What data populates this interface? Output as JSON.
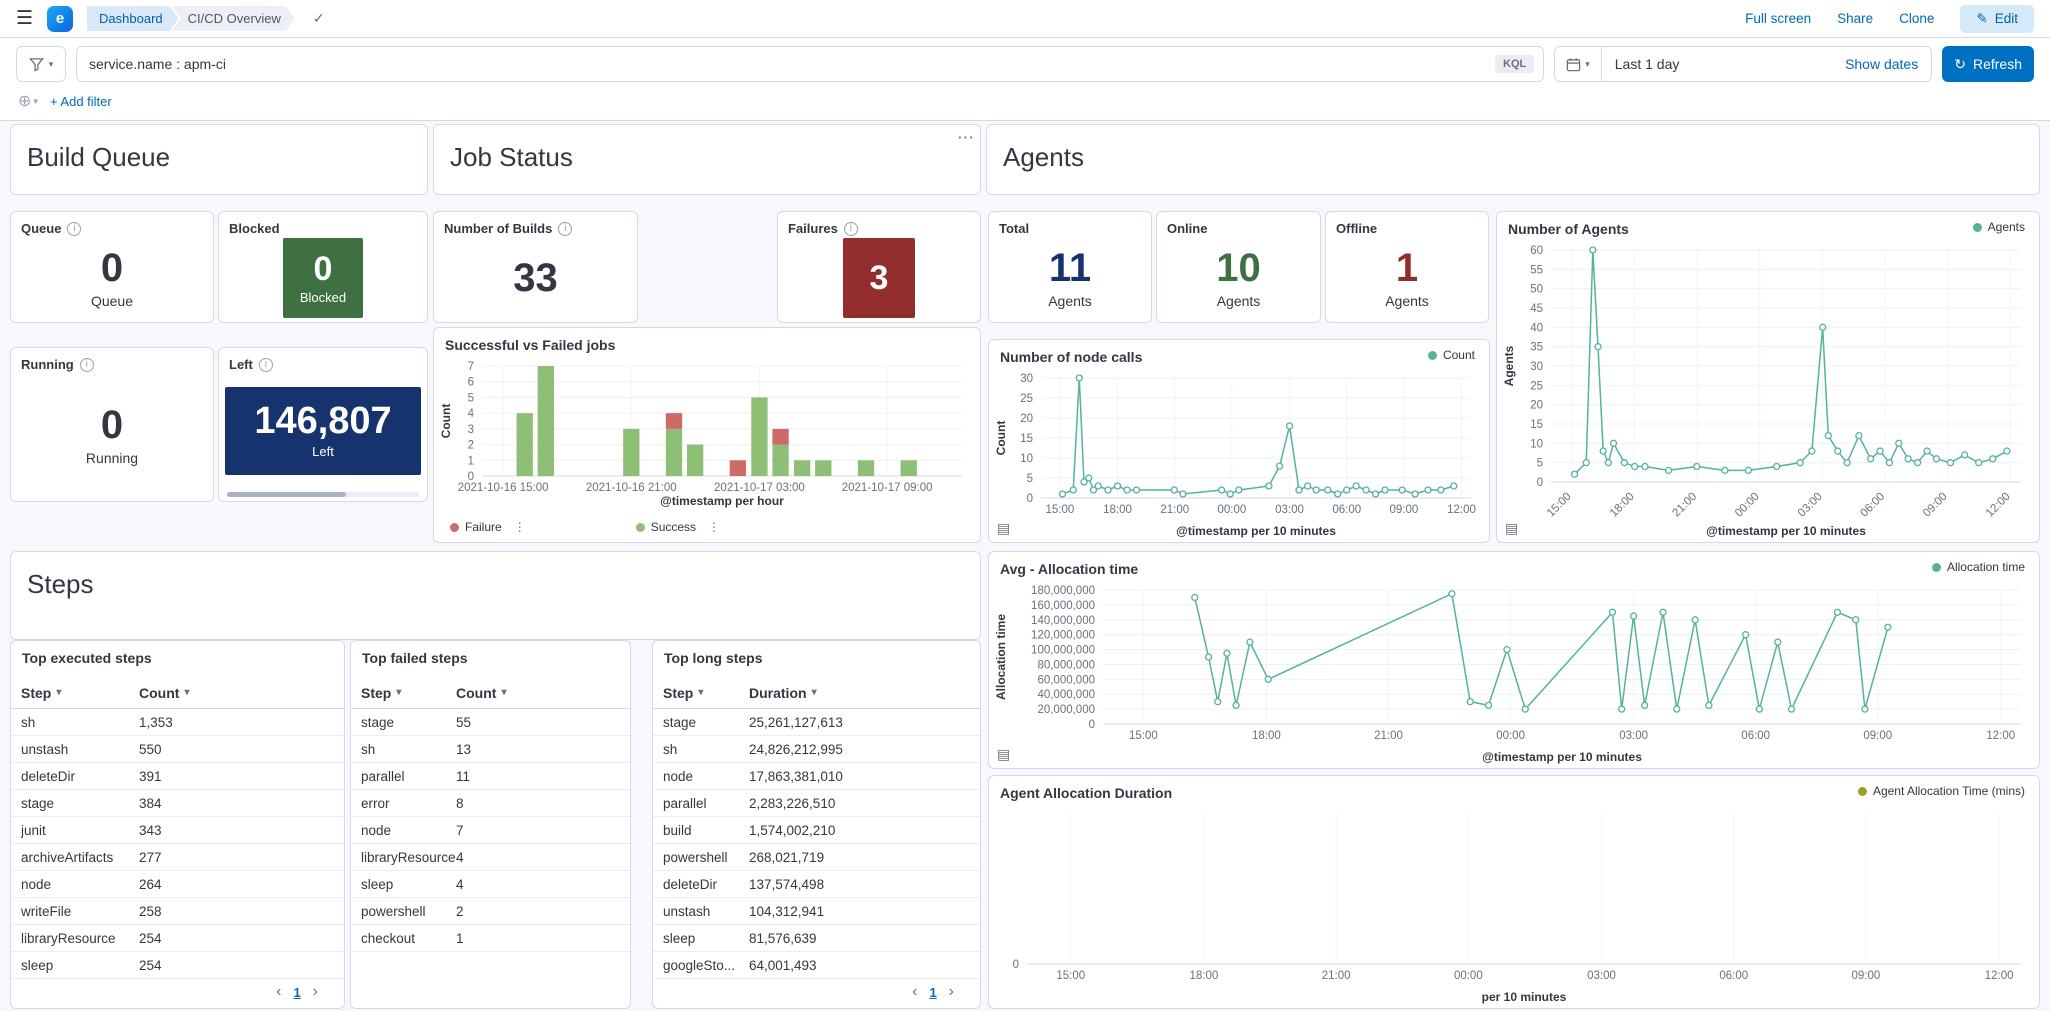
{
  "icons": {
    "menu": "☰",
    "check": "✓",
    "info": "i",
    "edit_pencil": "✎",
    "refresh_arrow": "↻",
    "chevron_down": "▾",
    "prev": "‹",
    "next": "›",
    "ellipsis": "⋯",
    "kebab": "⋮",
    "inspector": "▤",
    "plus_circle": "⊕",
    "space_letter": "e"
  },
  "header": {
    "breadcrumb1": "Dashboard",
    "breadcrumb2": "CI/CD Overview",
    "full_screen": "Full screen",
    "share": "Share",
    "clone": "Clone",
    "edit": "Edit"
  },
  "query": {
    "value": "service.name : apm-ci",
    "badge": "KQL",
    "time_range": "Last 1 day",
    "show_dates": "Show dates",
    "refresh": "Refresh",
    "add_filter": "+ Add filter"
  },
  "panels": {
    "build_queue": {
      "title": "Build Queue",
      "queue": {
        "label": "Queue",
        "value": "0",
        "sub": "Queue"
      },
      "blocked": {
        "label": "Blocked",
        "value": "0",
        "sub": "Blocked"
      },
      "running": {
        "label": "Running",
        "value": "0",
        "sub": "Running"
      },
      "left": {
        "label": "Left",
        "value": "146,807",
        "sub": "Left"
      }
    },
    "job_status": {
      "title": "Job Status",
      "builds": {
        "label": "Number of Builds",
        "value": "33"
      },
      "failures": {
        "label": "Failures",
        "value": "3"
      }
    },
    "agents": {
      "title": "Agents",
      "total": {
        "label": "Total",
        "value": "11",
        "sub": "Agents"
      },
      "online": {
        "label": "Online",
        "value": "10",
        "sub": "Agents"
      },
      "offline": {
        "label": "Offline",
        "value": "1",
        "sub": "Agents"
      }
    },
    "steps": {
      "title": "Steps"
    }
  },
  "tables": [
    {
      "title": "Top executed steps",
      "columns": [
        "Step",
        "Count"
      ],
      "rows": [
        [
          "sh",
          "1,353"
        ],
        [
          "unstash",
          "550"
        ],
        [
          "deleteDir",
          "391"
        ],
        [
          "stage",
          "384"
        ],
        [
          "junit",
          "343"
        ],
        [
          "archiveArtifacts",
          "277"
        ],
        [
          "node",
          "264"
        ],
        [
          "writeFile",
          "258"
        ],
        [
          "libraryResource",
          "254"
        ],
        [
          "sleep",
          "254"
        ]
      ],
      "page": "1"
    },
    {
      "title": "Top failed steps",
      "columns": [
        "Step",
        "Count"
      ],
      "rows": [
        [
          "stage",
          "55"
        ],
        [
          "sh",
          "13"
        ],
        [
          "parallel",
          "11"
        ],
        [
          "error",
          "8"
        ],
        [
          "node",
          "7"
        ],
        [
          "libraryResource",
          "4"
        ],
        [
          "sleep",
          "4"
        ],
        [
          "powershell",
          "2"
        ],
        [
          "checkout",
          "1"
        ]
      ]
    },
    {
      "title": "Top long steps",
      "columns": [
        "Step",
        "Duration"
      ],
      "rows": [
        [
          "stage",
          "25,261,127,613"
        ],
        [
          "sh",
          "24,826,212,995"
        ],
        [
          "node",
          "17,863,381,010"
        ],
        [
          "parallel",
          "2,283,226,510"
        ],
        [
          "build",
          "1,574,002,210"
        ],
        [
          "powershell",
          "268,021,719"
        ],
        [
          "deleteDir",
          "137,574,498"
        ],
        [
          "unstash",
          "104,312,941"
        ],
        [
          "sleep",
          "81,576,639"
        ],
        [
          "googleSto...",
          "64,001,493"
        ]
      ],
      "page": "1"
    }
  ],
  "chart_data": [
    {
      "id": "jobs",
      "type": "bar",
      "title": "Successful vs Failed jobs",
      "ylabel": "Count",
      "xlabel": "@timestamp per hour",
      "ylim": [
        0,
        7
      ],
      "yticks": [
        0,
        1,
        2,
        3,
        4,
        5,
        6,
        7
      ],
      "xticks": [
        {
          "pos": 0.044,
          "label": "2021-10-16 15:00"
        },
        {
          "pos": 0.311,
          "label": "2021-10-16 21:00"
        },
        {
          "pos": 0.578,
          "label": "2021-10-17 03:00"
        },
        {
          "pos": 0.844,
          "label": "2021-10-17 09:00"
        }
      ],
      "bar_width": 0.034,
      "series": [
        {
          "name": "Failure",
          "color": "#cf6a6a"
        },
        {
          "name": "Success",
          "color": "#8fbe76"
        }
      ],
      "bars": [
        {
          "pos": 0.089,
          "failure": 0,
          "success": 4
        },
        {
          "pos": 0.133,
          "failure": 0,
          "success": 7
        },
        {
          "pos": 0.311,
          "failure": 0,
          "success": 3
        },
        {
          "pos": 0.4,
          "failure": 1,
          "success": 3
        },
        {
          "pos": 0.444,
          "failure": 0,
          "success": 2
        },
        {
          "pos": 0.533,
          "failure": 1,
          "success": 0
        },
        {
          "pos": 0.578,
          "failure": 0,
          "success": 5
        },
        {
          "pos": 0.622,
          "failure": 1,
          "success": 2
        },
        {
          "pos": 0.667,
          "failure": 0,
          "success": 1
        },
        {
          "pos": 0.711,
          "failure": 0,
          "success": 1
        },
        {
          "pos": 0.8,
          "failure": 0,
          "success": 1
        },
        {
          "pos": 0.889,
          "failure": 0,
          "success": 1
        }
      ],
      "legend": [
        {
          "label": "Failure",
          "color": "#cf6a6a"
        },
        {
          "label": "Success",
          "color": "#8fbe76"
        }
      ],
      "legend_pos": "bl",
      "legend_actions": true
    },
    {
      "id": "node_calls",
      "type": "line",
      "title": "Number of node calls",
      "ylabel": "Count",
      "xlabel": "@timestamp per 10 minutes",
      "color": "#54b399",
      "ylim": [
        0,
        30
      ],
      "yticks": [
        0,
        5,
        10,
        15,
        20,
        25,
        30
      ],
      "xticks": [
        {
          "pos": 0.044,
          "label": "15:00"
        },
        {
          "pos": 0.178,
          "label": "18:00"
        },
        {
          "pos": 0.311,
          "label": "21:00"
        },
        {
          "pos": 0.444,
          "label": "00:00"
        },
        {
          "pos": 0.578,
          "label": "03:00"
        },
        {
          "pos": 0.711,
          "label": "06:00"
        },
        {
          "pos": 0.844,
          "label": "09:00"
        },
        {
          "pos": 0.978,
          "label": "12:00"
        }
      ],
      "points": [
        [
          0.05,
          1
        ],
        [
          0.075,
          2
        ],
        [
          0.089,
          30
        ],
        [
          0.1,
          4
        ],
        [
          0.111,
          5
        ],
        [
          0.122,
          2
        ],
        [
          0.133,
          3
        ],
        [
          0.156,
          2
        ],
        [
          0.178,
          3
        ],
        [
          0.2,
          2
        ],
        [
          0.222,
          2
        ],
        [
          0.31,
          2
        ],
        [
          0.33,
          1
        ],
        [
          0.42,
          2
        ],
        [
          0.44,
          1
        ],
        [
          0.46,
          2
        ],
        [
          0.53,
          3
        ],
        [
          0.555,
          8
        ],
        [
          0.578,
          18
        ],
        [
          0.6,
          2
        ],
        [
          0.62,
          3
        ],
        [
          0.64,
          2
        ],
        [
          0.667,
          2
        ],
        [
          0.69,
          1
        ],
        [
          0.711,
          2
        ],
        [
          0.733,
          3
        ],
        [
          0.756,
          2
        ],
        [
          0.778,
          1
        ],
        [
          0.8,
          2
        ],
        [
          0.84,
          2
        ],
        [
          0.87,
          1
        ],
        [
          0.9,
          2
        ],
        [
          0.93,
          2
        ],
        [
          0.96,
          3
        ]
      ],
      "legend": [
        {
          "label": "Count",
          "color": "#54b399"
        }
      ],
      "legend_pos": "tr"
    },
    {
      "id": "agents",
      "type": "line",
      "title": "Number of Agents",
      "ylabel": "Agents",
      "xlabel": "@timestamp per 10 minutes",
      "color": "#54b399",
      "ylim": [
        0,
        60
      ],
      "yticks": [
        0,
        5,
        10,
        15,
        20,
        25,
        30,
        35,
        40,
        45,
        50,
        55,
        60
      ],
      "xticks": [
        {
          "pos": 0.044,
          "label": "15:00"
        },
        {
          "pos": 0.178,
          "label": "18:00"
        },
        {
          "pos": 0.311,
          "label": "21:00"
        },
        {
          "pos": 0.444,
          "label": "00:00"
        },
        {
          "pos": 0.578,
          "label": "03:00"
        },
        {
          "pos": 0.711,
          "label": "06:00"
        },
        {
          "pos": 0.844,
          "label": "09:00"
        },
        {
          "pos": 0.978,
          "label": "12:00"
        }
      ],
      "points": [
        [
          0.05,
          2
        ],
        [
          0.075,
          5
        ],
        [
          0.089,
          60
        ],
        [
          0.1,
          35
        ],
        [
          0.111,
          8
        ],
        [
          0.122,
          5
        ],
        [
          0.133,
          10
        ],
        [
          0.156,
          5
        ],
        [
          0.178,
          4
        ],
        [
          0.2,
          4
        ],
        [
          0.25,
          3
        ],
        [
          0.31,
          4
        ],
        [
          0.37,
          3
        ],
        [
          0.42,
          3
        ],
        [
          0.48,
          4
        ],
        [
          0.53,
          5
        ],
        [
          0.555,
          8
        ],
        [
          0.578,
          40
        ],
        [
          0.59,
          12
        ],
        [
          0.61,
          8
        ],
        [
          0.63,
          5
        ],
        [
          0.655,
          12
        ],
        [
          0.68,
          6
        ],
        [
          0.7,
          8
        ],
        [
          0.72,
          5
        ],
        [
          0.74,
          10
        ],
        [
          0.76,
          6
        ],
        [
          0.78,
          5
        ],
        [
          0.8,
          8
        ],
        [
          0.82,
          6
        ],
        [
          0.85,
          5
        ],
        [
          0.88,
          7
        ],
        [
          0.91,
          5
        ],
        [
          0.94,
          6
        ],
        [
          0.97,
          8
        ]
      ],
      "legend": [
        {
          "label": "Agents",
          "color": "#54b399"
        }
      ],
      "legend_pos": "tr"
    },
    {
      "id": "alloc",
      "type": "line",
      "title": "Avg - Allocation time",
      "ylabel": "Allocation time",
      "xlabel": "@timestamp per 10 minutes",
      "color": "#54b399",
      "ylim": [
        0,
        180000000
      ],
      "yticks": [
        0,
        20000000,
        40000000,
        60000000,
        80000000,
        100000000,
        120000000,
        140000000,
        160000000,
        180000000
      ],
      "ytick_labels": [
        "0",
        "20,000,000",
        "40,000,000",
        "60,000,000",
        "80,000,000",
        "100,000,000",
        "120,000,000",
        "140,000,000",
        "160,000,000",
        "180,000,000"
      ],
      "xticks": [
        {
          "pos": 0.044,
          "label": "15:00"
        },
        {
          "pos": 0.178,
          "label": "18:00"
        },
        {
          "pos": 0.311,
          "label": "21:00"
        },
        {
          "pos": 0.444,
          "label": "00:00"
        },
        {
          "pos": 0.578,
          "label": "03:00"
        },
        {
          "pos": 0.711,
          "label": "06:00"
        },
        {
          "pos": 0.844,
          "label": "09:00"
        },
        {
          "pos": 0.978,
          "label": "12:00"
        }
      ],
      "points": [
        [
          0.1,
          170000000
        ],
        [
          0.115,
          90000000
        ],
        [
          0.125,
          30000000
        ],
        [
          0.135,
          95000000
        ],
        [
          0.145,
          25000000
        ],
        [
          0.16,
          110000000
        ],
        [
          0.18,
          60000000
        ],
        [
          0.38,
          175000000
        ],
        [
          0.4,
          30000000
        ],
        [
          0.42,
          25000000
        ],
        [
          0.44,
          100000000
        ],
        [
          0.46,
          20000000
        ],
        [
          0.555,
          150000000
        ],
        [
          0.565,
          20000000
        ],
        [
          0.578,
          145000000
        ],
        [
          0.59,
          25000000
        ],
        [
          0.61,
          150000000
        ],
        [
          0.625,
          20000000
        ],
        [
          0.645,
          140000000
        ],
        [
          0.66,
          25000000
        ],
        [
          0.7,
          120000000
        ],
        [
          0.715,
          20000000
        ],
        [
          0.735,
          110000000
        ],
        [
          0.75,
          20000000
        ],
        [
          0.8,
          150000000
        ],
        [
          0.82,
          140000000
        ],
        [
          0.83,
          20000000
        ],
        [
          0.855,
          130000000
        ]
      ],
      "legend": [
        {
          "label": "Allocation time",
          "color": "#54b399"
        }
      ],
      "legend_pos": "tr"
    },
    {
      "id": "duration",
      "type": "line",
      "title": "Agent Allocation Duration",
      "ylabel": "",
      "xlabel": "per 10 minutes",
      "color": "#9aa128",
      "ylim": [
        0,
        1
      ],
      "yticks": [
        0
      ],
      "xticks": [
        {
          "pos": 0.044,
          "label": "15:00"
        },
        {
          "pos": 0.178,
          "label": "18:00"
        },
        {
          "pos": 0.311,
          "label": "21:00"
        },
        {
          "pos": 0.444,
          "label": "00:00"
        },
        {
          "pos": 0.578,
          "label": "03:00"
        },
        {
          "pos": 0.711,
          "label": "06:00"
        },
        {
          "pos": 0.844,
          "label": "09:00"
        },
        {
          "pos": 0.978,
          "label": "12:00"
        }
      ],
      "points": [],
      "legend": [
        {
          "label": "Agent Allocation Time (mins)",
          "color": "#9aa128"
        }
      ],
      "legend_pos": "tr"
    }
  ]
}
